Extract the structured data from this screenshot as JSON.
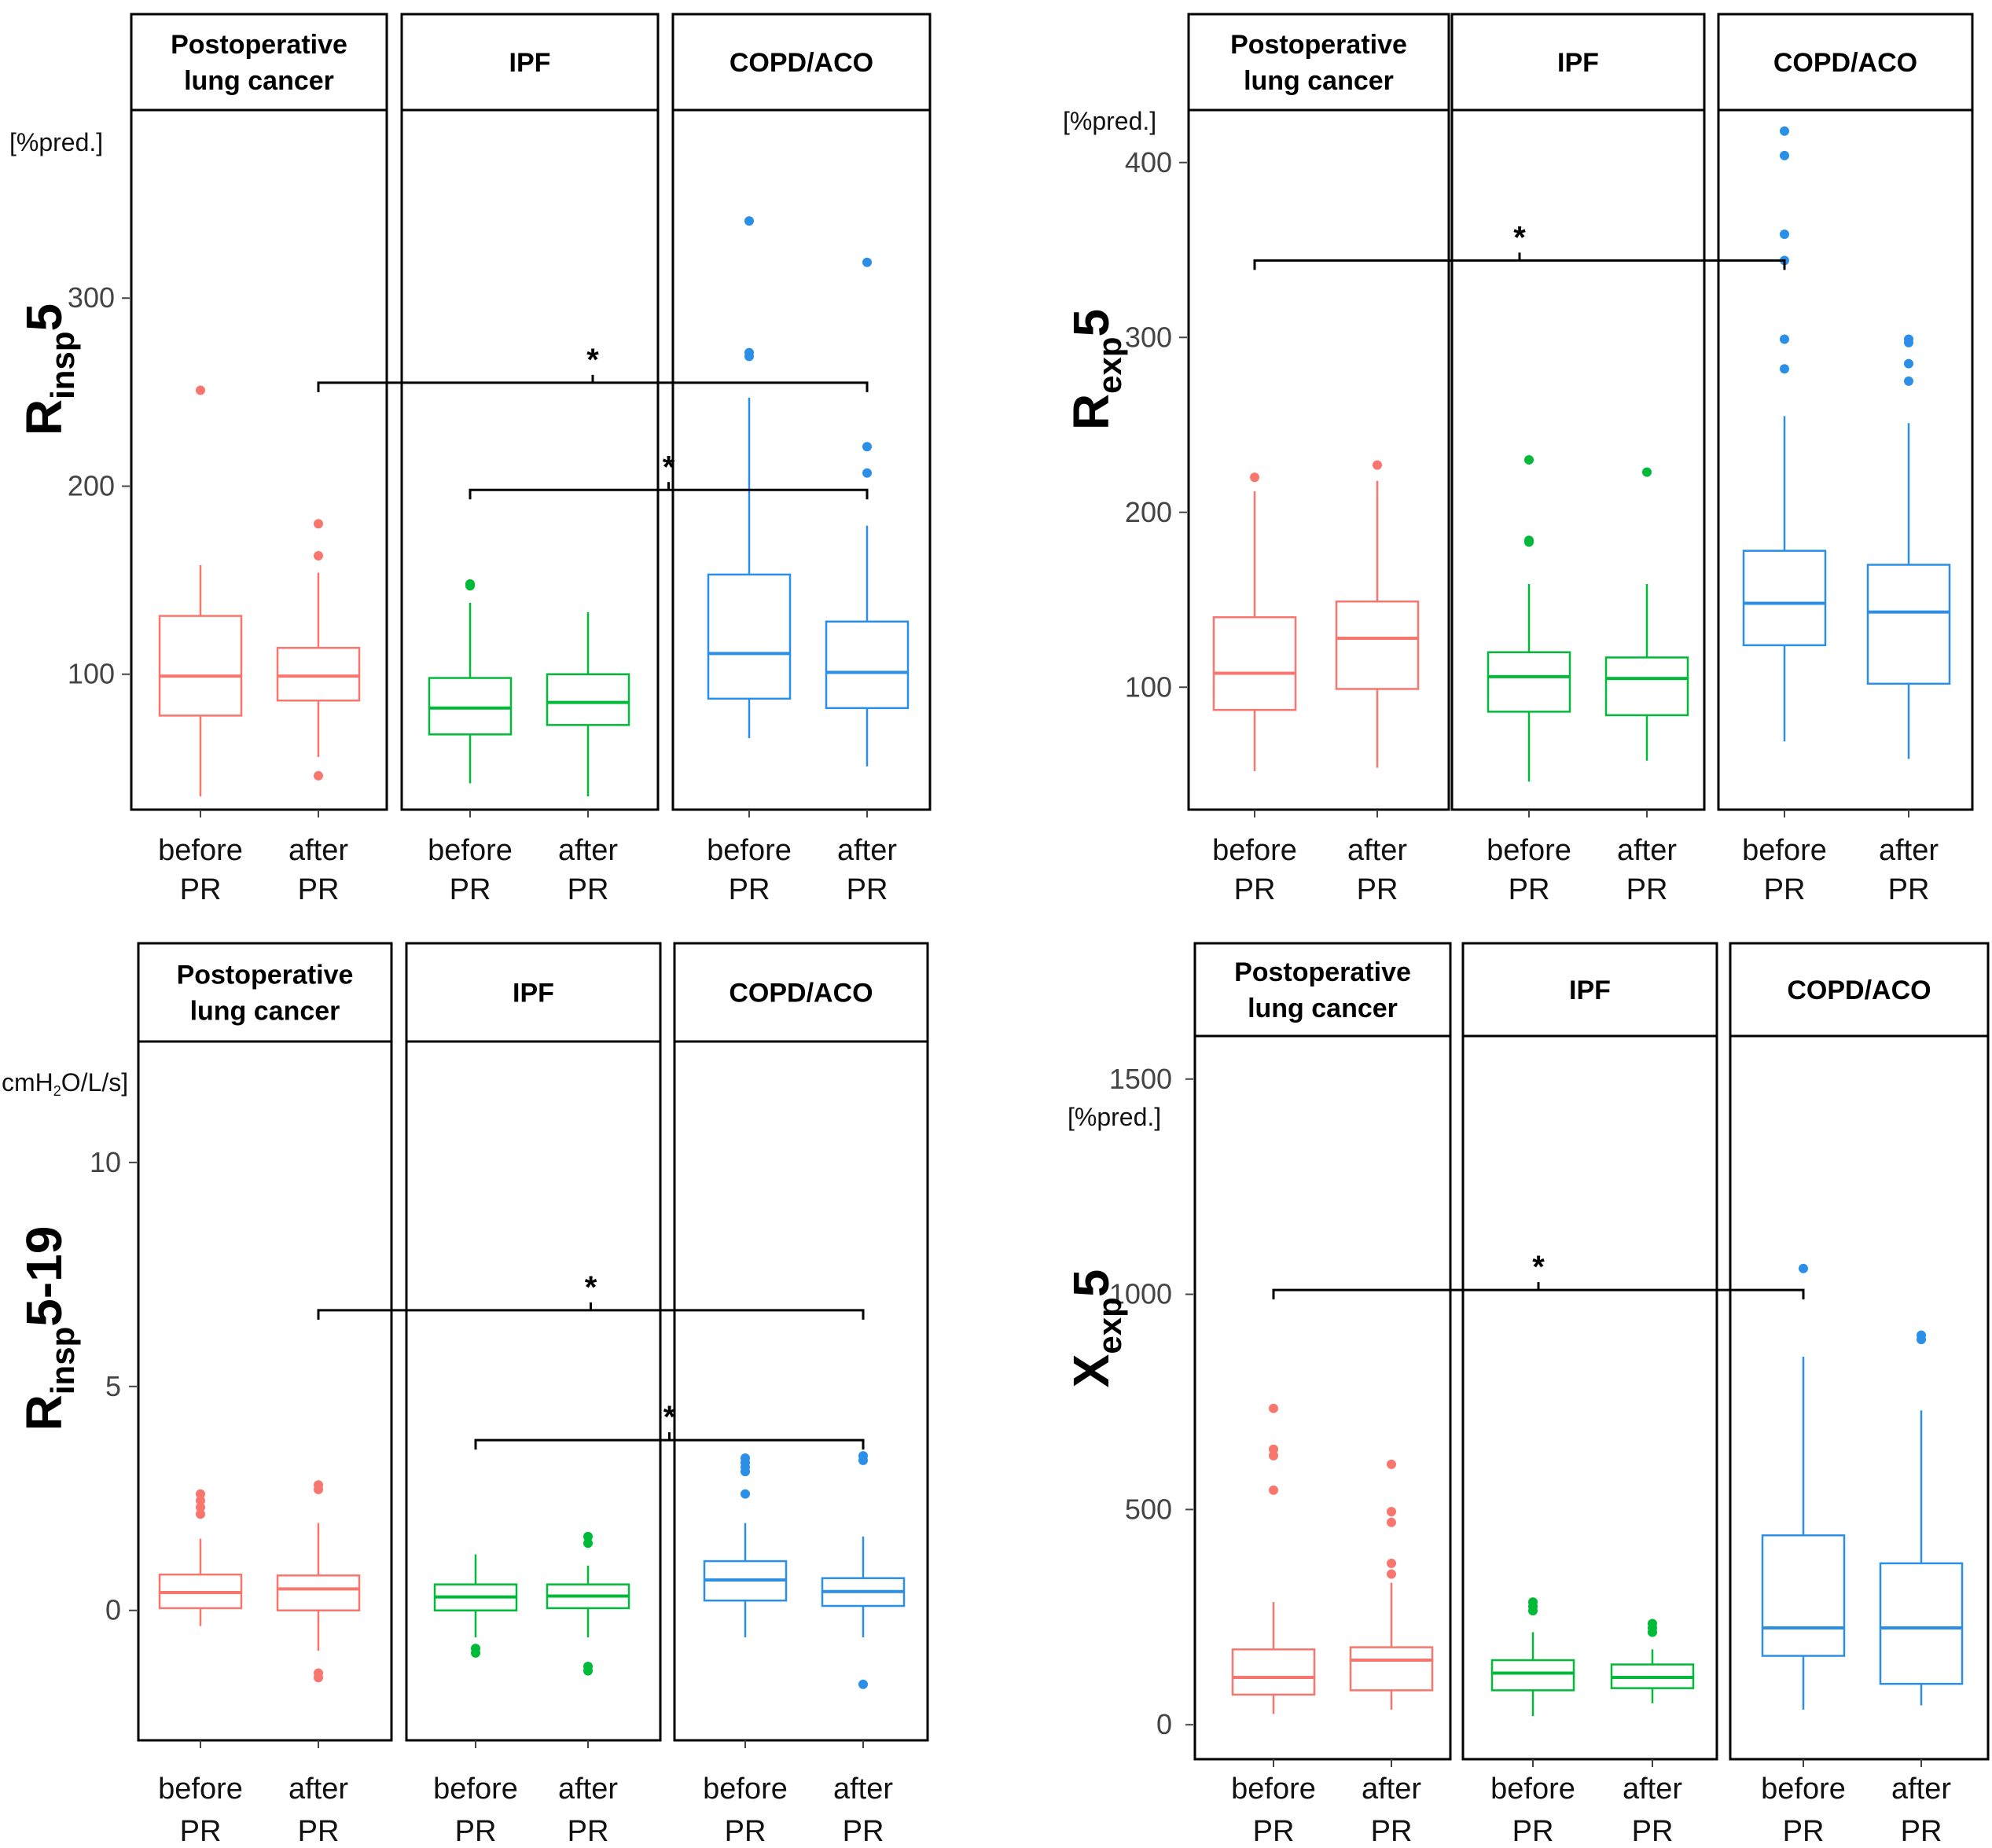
{
  "chart_data": [
    {
      "type": "box",
      "id": "p1",
      "ylabel": {
        "main": "R",
        "sub": "insp",
        "tail": "5"
      },
      "unit": "[%pred.]",
      "ylim": [
        28,
        400
      ],
      "yticks": [
        100,
        200,
        300
      ],
      "panels": [
        {
          "label": "Postoperative\nlung cancer",
          "color": "#F8766D",
          "boxes": [
            {
              "x": "before\nPR",
              "min": 35,
              "q1": 78,
              "median": 99,
              "q3": 131,
              "max": 158,
              "outliers": [
                251
              ]
            },
            {
              "x": "after\nPR",
              "min": 56,
              "q1": 86,
              "median": 99,
              "q3": 114,
              "max": 154,
              "outliers": [
                180,
                163,
                46
              ]
            }
          ]
        },
        {
          "label": "IPF",
          "color": "#00BA38",
          "boxes": [
            {
              "x": "before\nPR",
              "min": 42,
              "q1": 68,
              "median": 82,
              "q3": 98,
              "max": 138,
              "outliers": [
                148,
                147
              ]
            },
            {
              "x": "after\nPR",
              "min": 35,
              "q1": 73,
              "median": 85,
              "q3": 100,
              "max": 133,
              "outliers": []
            }
          ]
        },
        {
          "label": "COPD/ACO",
          "color": "#2B8FE8",
          "boxes": [
            {
              "x": "before\nPR",
              "min": 66,
              "q1": 87,
              "median": 111,
              "q3": 153,
              "max": 247,
              "outliers": [
                341,
                271,
                269
              ]
            },
            {
              "x": "after\nPR",
              "min": 51,
              "q1": 82,
              "median": 101,
              "q3": 128,
              "max": 179,
              "outliers": [
                319,
                221,
                207
              ]
            }
          ]
        }
      ],
      "brackets": [
        {
          "from": [
            0,
            1
          ],
          "to": [
            2,
            1
          ],
          "y": 255,
          "label": "*"
        },
        {
          "from": [
            1,
            0
          ],
          "to": [
            2,
            1
          ],
          "y": 198,
          "label": "*"
        }
      ]
    },
    {
      "type": "box",
      "id": "p2",
      "ylabel": {
        "main": "R",
        "sub": "exp",
        "tail": "5"
      },
      "unit": "[%pred.]",
      "ylim": [
        30,
        430
      ],
      "yticks": [
        100,
        200,
        300,
        400
      ],
      "panels": [
        {
          "label": "Postoperative\nlung cancer",
          "color": "#F8766D",
          "boxes": [
            {
              "x": "before\nPR",
              "min": 52,
              "q1": 87,
              "median": 108,
              "q3": 140,
              "max": 212,
              "outliers": [
                220
              ]
            },
            {
              "x": "after\nPR",
              "min": 54,
              "q1": 99,
              "median": 128,
              "q3": 149,
              "max": 218,
              "outliers": [
                227
              ]
            }
          ]
        },
        {
          "label": "IPF",
          "color": "#00BA38",
          "boxes": [
            {
              "x": "before\nPR",
              "min": 46,
              "q1": 86,
              "median": 106,
              "q3": 120,
              "max": 159,
              "outliers": [
                230,
                184,
                183
              ]
            },
            {
              "x": "after\nPR",
              "min": 58,
              "q1": 84,
              "median": 105,
              "q3": 117,
              "max": 159,
              "outliers": [
                223
              ]
            }
          ]
        },
        {
          "label": "COPD/ACO",
          "color": "#2B8FE8",
          "boxes": [
            {
              "x": "before\nPR",
              "min": 69,
              "q1": 124,
              "median": 148,
              "q3": 178,
              "max": 255,
              "outliers": [
                418,
                404,
                359,
                344,
                299,
                282
              ]
            },
            {
              "x": "after\nPR",
              "min": 59,
              "q1": 102,
              "median": 143,
              "q3": 170,
              "max": 251,
              "outliers": [
                299,
                297,
                285,
                275
              ]
            }
          ]
        }
      ],
      "brackets": [
        {
          "from": [
            0,
            0
          ],
          "to": [
            2,
            0
          ],
          "y": 344,
          "label": "*"
        }
      ]
    },
    {
      "type": "box",
      "id": "p3",
      "ylabel": {
        "main": "R",
        "sub": "insp",
        "tail": "5-19"
      },
      "unit": "cmH2O/L/s]",
      "ylim": [
        -2.9,
        12.7
      ],
      "yticks": [
        0,
        5,
        10
      ],
      "panels": [
        {
          "label": "Postoperative\nlung cancer",
          "color": "#F8766D",
          "boxes": [
            {
              "x": "before\nPR",
              "min": -0.35,
              "q1": 0.05,
              "median": 0.4,
              "q3": 0.8,
              "max": 1.6,
              "outliers": [
                2.6,
                2.45,
                2.3,
                2.15
              ]
            },
            {
              "x": "after\nPR",
              "min": -0.9,
              "q1": 0.0,
              "median": 0.48,
              "q3": 0.78,
              "max": 1.95,
              "outliers": [
                2.8,
                2.7,
                -1.4,
                -1.5
              ]
            }
          ]
        },
        {
          "label": "IPF",
          "color": "#00BA38",
          "boxes": [
            {
              "x": "before\nPR",
              "min": -0.6,
              "q1": 0.0,
              "median": 0.3,
              "q3": 0.58,
              "max": 1.25,
              "outliers": [
                -0.85,
                -0.95
              ]
            },
            {
              "x": "after\nPR",
              "min": -0.6,
              "q1": 0.05,
              "median": 0.32,
              "q3": 0.58,
              "max": 1.0,
              "outliers": [
                1.65,
                1.5,
                -1.25,
                -1.35
              ]
            }
          ]
        },
        {
          "label": "COPD/ACO",
          "color": "#2B8FE8",
          "boxes": [
            {
              "x": "before\nPR",
              "min": -0.6,
              "q1": 0.22,
              "median": 0.68,
              "q3": 1.1,
              "max": 1.95,
              "outliers": [
                3.4,
                3.3,
                3.2,
                3.1,
                2.6
              ]
            },
            {
              "x": "after\nPR",
              "min": -0.6,
              "q1": 0.1,
              "median": 0.42,
              "q3": 0.72,
              "max": 1.65,
              "outliers": [
                3.45,
                3.35,
                -1.65
              ]
            }
          ]
        }
      ],
      "brackets": [
        {
          "from": [
            0,
            1
          ],
          "to": [
            2,
            1
          ],
          "y": 6.7,
          "label": "*"
        },
        {
          "from": [
            1,
            0
          ],
          "to": [
            2,
            1
          ],
          "y": 3.8,
          "label": "*"
        }
      ]
    },
    {
      "type": "box",
      "id": "p4",
      "ylabel": {
        "main": "X",
        "sub": "exp",
        "tail": "5"
      },
      "unit": "[%pred.]",
      "ylim": [
        -80,
        1600
      ],
      "yticks": [
        0,
        500,
        1000,
        1500
      ],
      "panels": [
        {
          "label": "Postoperative\nlung cancer",
          "color": "#F8766D",
          "boxes": [
            {
              "x": "before\nPR",
              "min": 25,
              "q1": 70,
              "median": 110,
              "q3": 175,
              "max": 285,
              "outliers": [
                735,
                640,
                625,
                545
              ]
            },
            {
              "x": "after\nPR",
              "min": 35,
              "q1": 80,
              "median": 150,
              "q3": 180,
              "max": 330,
              "outliers": [
                605,
                495,
                470,
                375,
                350
              ]
            }
          ]
        },
        {
          "label": "IPF",
          "color": "#00BA38",
          "boxes": [
            {
              "x": "before\nPR",
              "min": 20,
              "q1": 80,
              "median": 120,
              "q3": 150,
              "max": 215,
              "outliers": [
                285,
                275,
                265
              ]
            },
            {
              "x": "after\nPR",
              "min": 50,
              "q1": 85,
              "median": 110,
              "q3": 140,
              "max": 175,
              "outliers": [
                235,
                225,
                215
              ]
            }
          ]
        },
        {
          "label": "COPD/ACO",
          "color": "#2B8FE8",
          "boxes": [
            {
              "x": "before\nPR",
              "min": 35,
              "q1": 160,
              "median": 225,
              "q3": 440,
              "max": 855,
              "outliers": [
                1060
              ]
            },
            {
              "x": "after\nPR",
              "min": 45,
              "q1": 95,
              "median": 225,
              "q3": 375,
              "max": 730,
              "outliers": [
                905,
                895
              ]
            }
          ]
        }
      ],
      "brackets": [
        {
          "from": [
            0,
            0
          ],
          "to": [
            2,
            0
          ],
          "y": 1010,
          "label": "*"
        }
      ]
    }
  ]
}
